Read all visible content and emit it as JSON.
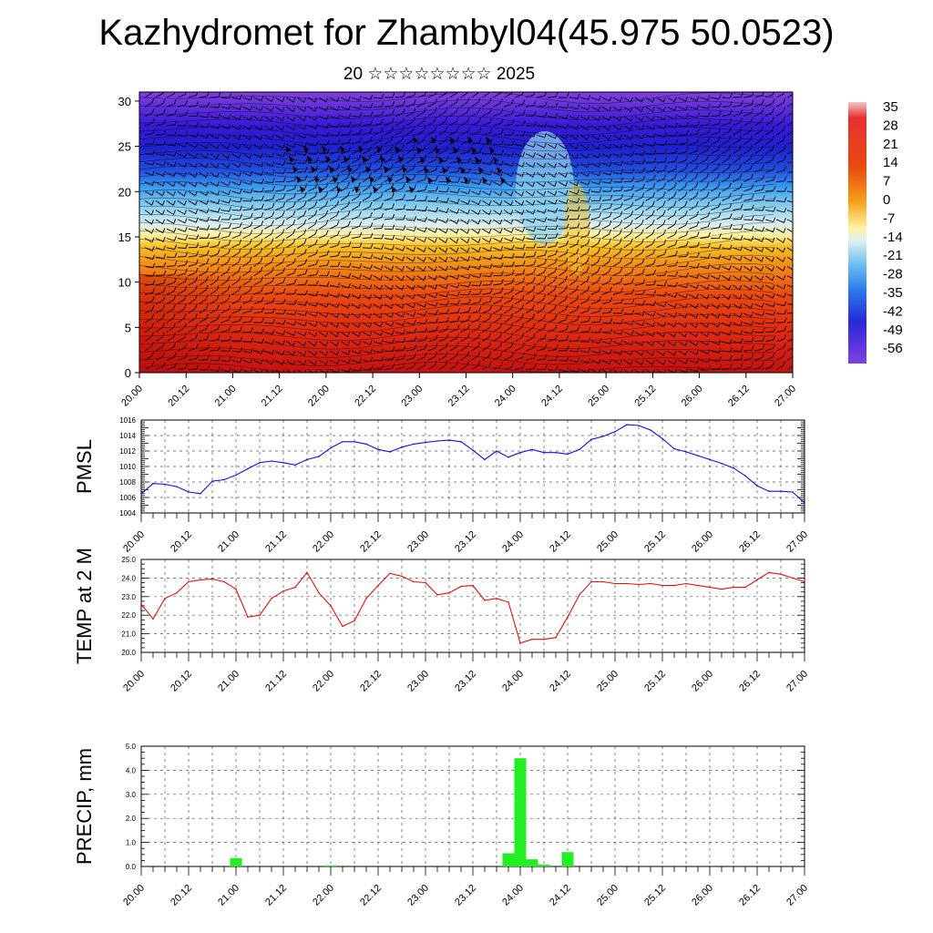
{
  "title": "Kazhydromet for Zhambyl04(45.975 50.0523)",
  "subtitle": "20 ☆☆☆☆☆☆☆☆ 2025",
  "time_labels": [
    "20.00",
    "20.12",
    "21.00",
    "21.12",
    "22.00",
    "22.12",
    "23.00",
    "23.12",
    "24.00",
    "24.12",
    "25.00",
    "25.12",
    "26.00",
    "26.12",
    "27.00"
  ],
  "chart_data": [
    {
      "type": "heatmap",
      "title": "",
      "xlabel": "",
      "ylabel": "",
      "x": [
        "20.00",
        "20.12",
        "21.00",
        "21.12",
        "22.00",
        "22.12",
        "23.00",
        "23.12",
        "24.00",
        "24.12",
        "25.00",
        "25.12",
        "26.00",
        "26.12",
        "27.00"
      ],
      "yticks": [
        0,
        5,
        10,
        15,
        20,
        25,
        30
      ],
      "ylim": [
        0,
        31
      ],
      "overlay": "wind barbs and streamlines",
      "colorbar": {
        "labels": [
          "35",
          "28",
          "21",
          "14",
          "7",
          "0",
          "-7",
          "-14",
          "-21",
          "-28",
          "-35",
          "-42",
          "-49",
          "-56"
        ],
        "colors": [
          "#f0b8b8",
          "#e83030",
          "#dc1010",
          "#e84a10",
          "#f08a10",
          "#f8c020",
          "#fff2a0",
          "#e0f0f0",
          "#8cd0f0",
          "#40a8f0",
          "#2070e8",
          "#2838d8",
          "#3010d0",
          "#8040e0"
        ]
      }
    },
    {
      "type": "line",
      "ylabel": "PMSL",
      "yticks": [
        "1004",
        "1006",
        "1008",
        "1010",
        "1012",
        "1014",
        "1016"
      ],
      "ylim": [
        1004,
        1016
      ],
      "color": "#1010dd",
      "x": [
        0,
        3,
        6,
        9,
        12,
        15,
        18,
        21,
        24,
        27,
        30,
        33,
        36,
        39,
        42,
        45,
        48,
        51,
        54,
        57,
        60,
        63,
        66,
        69,
        72,
        75,
        78,
        81,
        84,
        87,
        90,
        93,
        96,
        99,
        102,
        105,
        108,
        111,
        114,
        117,
        120,
        123,
        126,
        129,
        132,
        135,
        138,
        141,
        144,
        147,
        150,
        153,
        156,
        159,
        162,
        165,
        168
      ],
      "values": [
        1006.5,
        1007.8,
        1007.7,
        1007.4,
        1006.7,
        1006.5,
        1008.1,
        1008.3,
        1008.9,
        1009.7,
        1010.5,
        1010.7,
        1010.5,
        1010.2,
        1010.9,
        1011.3,
        1012.4,
        1013.2,
        1013.2,
        1012.9,
        1012.2,
        1011.9,
        1012.5,
        1012.9,
        1013.1,
        1013.3,
        1013.4,
        1013.2,
        1012.1,
        1010.9,
        1012.0,
        1011.2,
        1011.8,
        1012.2,
        1011.8,
        1011.8,
        1011.6,
        1012.2,
        1013.5,
        1013.9,
        1014.5,
        1015.4,
        1015.3,
        1014.7,
        1013.6,
        1012.3,
        1011.9,
        1011.4,
        1010.9,
        1010.4,
        1009.8,
        1008.8,
        1007.5,
        1006.8,
        1006.8,
        1006.7,
        1005.3
      ]
    },
    {
      "type": "line",
      "ylabel": "TEMP at 2 M",
      "yticks": [
        "20.0",
        "21.0",
        "22.0",
        "23.0",
        "24.0",
        "25.0"
      ],
      "ylim": [
        20,
        25
      ],
      "color": "#dd1010",
      "x": [
        0,
        3,
        6,
        9,
        12,
        15,
        18,
        21,
        24,
        27,
        30,
        33,
        36,
        39,
        42,
        45,
        48,
        51,
        54,
        57,
        60,
        63,
        66,
        69,
        72,
        75,
        78,
        81,
        84,
        87,
        90,
        93,
        96,
        99,
        102,
        105,
        108,
        111,
        114,
        117,
        120,
        123,
        126,
        129,
        132,
        135,
        138,
        141,
        144,
        147,
        150,
        153,
        156,
        159,
        162,
        165,
        168
      ],
      "values": [
        22.6,
        21.8,
        22.9,
        23.2,
        23.8,
        23.9,
        23.95,
        23.8,
        23.4,
        21.9,
        22.0,
        22.9,
        23.3,
        23.5,
        24.3,
        23.2,
        22.5,
        21.4,
        21.7,
        22.9,
        23.6,
        24.25,
        24.1,
        23.8,
        23.75,
        23.1,
        23.2,
        23.55,
        23.6,
        22.8,
        22.9,
        22.7,
        20.5,
        20.7,
        20.7,
        20.8,
        21.9,
        23.1,
        23.8,
        23.8,
        23.7,
        23.7,
        23.65,
        23.7,
        23.6,
        23.6,
        23.7,
        23.6,
        23.5,
        23.4,
        23.5,
        23.5,
        23.9,
        24.3,
        24.2,
        24.0,
        23.8
      ]
    },
    {
      "type": "bar",
      "ylabel": "PRECIP, mm",
      "yticks": [
        "0.0",
        "1.0",
        "2.0",
        "3.0",
        "4.0",
        "5.0"
      ],
      "ylim": [
        0,
        5
      ],
      "color": "#22ee22",
      "x": [
        24,
        48,
        93,
        96,
        99,
        102,
        108
      ],
      "values": [
        0.35,
        0.05,
        0.55,
        4.5,
        0.3,
        0.08,
        0.6
      ]
    }
  ]
}
